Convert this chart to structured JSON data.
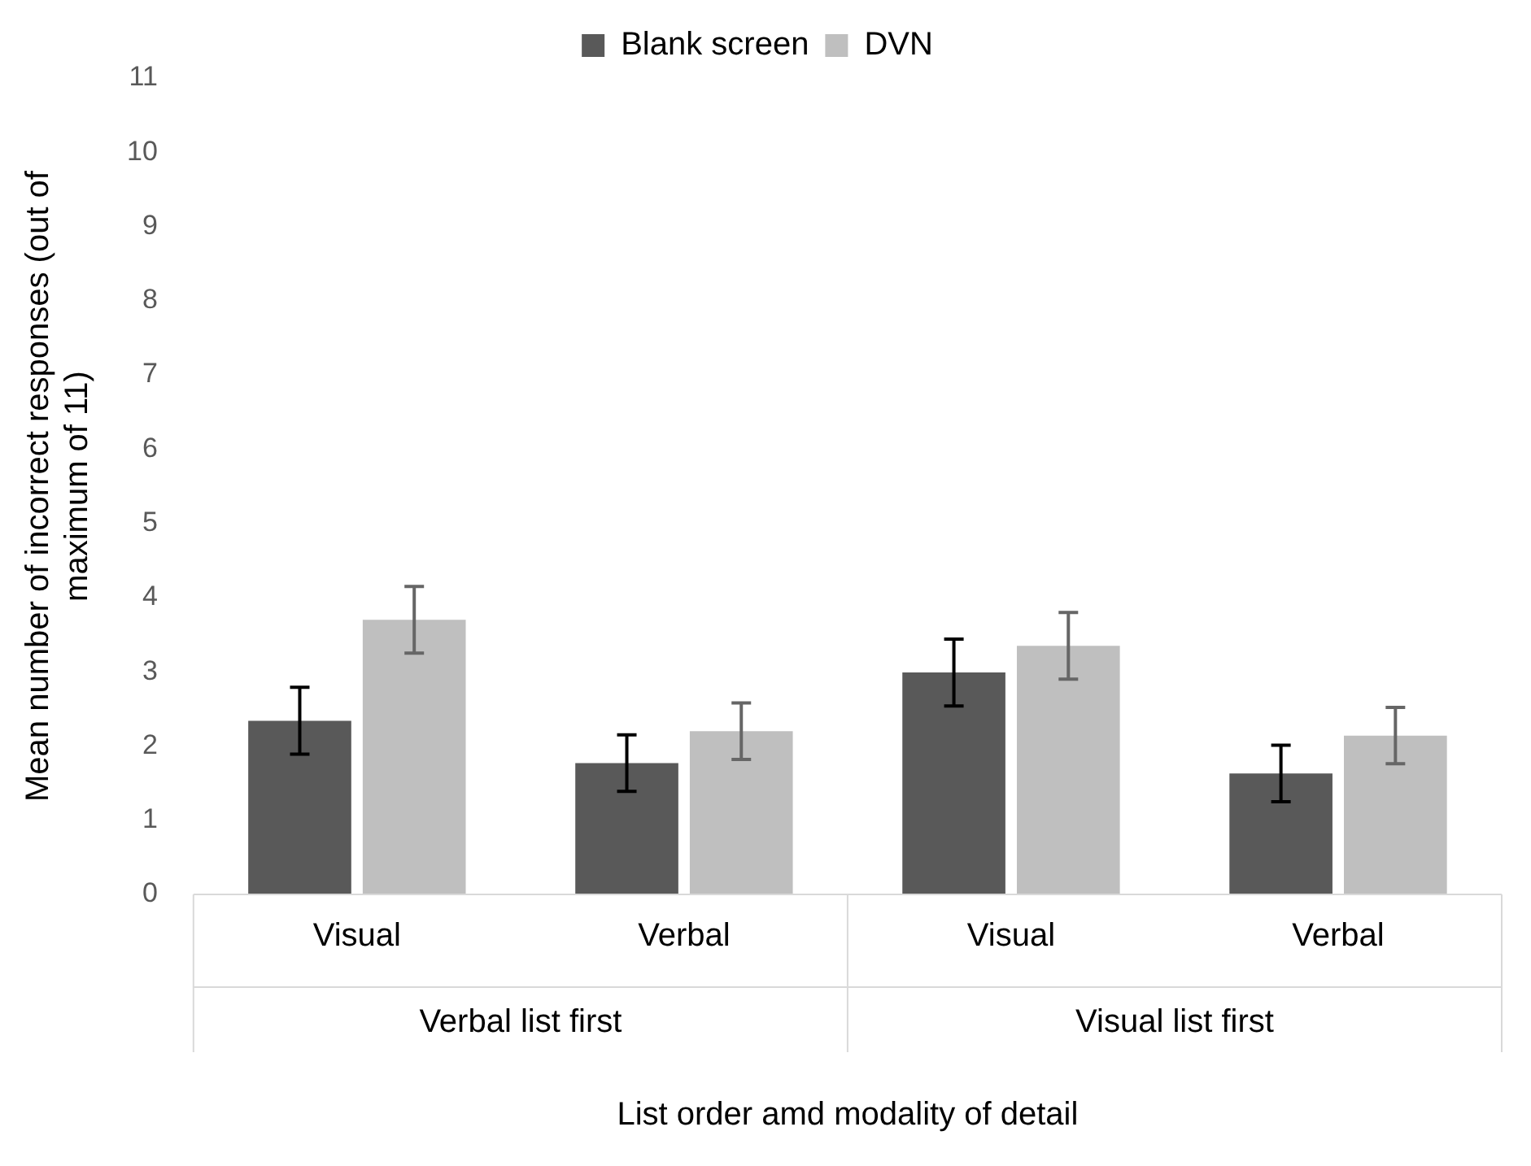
{
  "chart_data": {
    "type": "bar",
    "xlabel": "List order amd modality of detail",
    "ylabel": "Mean number of incorrect responses (out of maximum of 11)",
    "categories": [
      "Visual",
      "Verbal",
      "Visual",
      "Verbal"
    ],
    "annotations": [
      "Verbal list first",
      "Visual list first"
    ],
    "series": [
      {
        "name": "Blank screen",
        "color": "#595959",
        "values": [
          2.34,
          1.77,
          2.99,
          1.63
        ],
        "errors": [
          0.45,
          0.38,
          0.45,
          0.38
        ]
      },
      {
        "name": "DVN",
        "color": "#bfbfbf",
        "values": [
          3.7,
          2.2,
          3.35,
          2.14
        ],
        "errors": [
          0.45,
          0.38,
          0.45,
          0.38
        ]
      }
    ],
    "ylim": [
      0,
      11
    ],
    "yticks": [
      0,
      1,
      2,
      3,
      4,
      5,
      6,
      7,
      8,
      9,
      10,
      11
    ],
    "grid": false,
    "legend": "top"
  }
}
